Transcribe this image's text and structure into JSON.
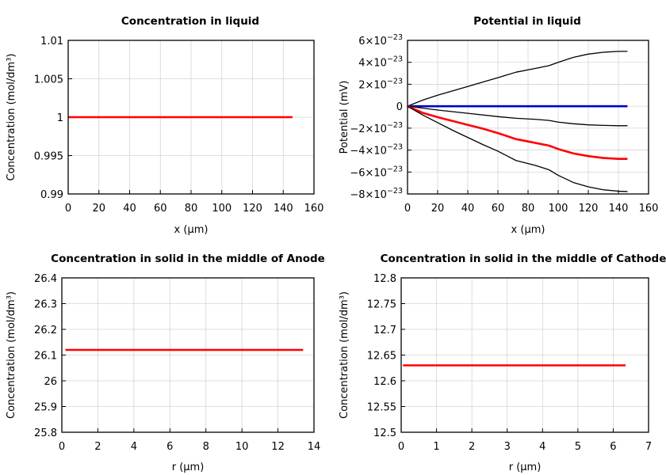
{
  "chart_data": [
    {
      "type": "line",
      "title": "Concentration in liquid",
      "xlabel": "x (µm)",
      "ylabel": "Concentration (mol/dm³)",
      "xlim": [
        0,
        160
      ],
      "ylim": [
        0.99,
        1.01
      ],
      "xticks": [
        "0",
        "20",
        "40",
        "60",
        "80",
        "100",
        "120",
        "140",
        "160"
      ],
      "yticks": [
        "0.99",
        "0.995",
        "1",
        "1.005",
        "1.01"
      ],
      "grid": true,
      "series": [
        {
          "color": "#ff0000",
          "width": 2.6,
          "x": [
            0,
            146
          ],
          "y": [
            1,
            1
          ]
        }
      ]
    },
    {
      "type": "line",
      "title": "Potential in liquid",
      "xlabel": "x (µm)",
      "ylabel": "Potential (mV)",
      "xlim": [
        0,
        160
      ],
      "ylim": [
        -8e-23,
        6e-23
      ],
      "xticks": [
        "0",
        "20",
        "40",
        "60",
        "80",
        "100",
        "120",
        "140",
        "160"
      ],
      "yticks": [
        {
          "mant": "−8×10",
          "exp": "−23"
        },
        {
          "mant": "−6×10",
          "exp": "−23"
        },
        {
          "mant": "−4×10",
          "exp": "−23"
        },
        {
          "mant": "−2×10",
          "exp": "−23"
        },
        {
          "mant": "0",
          "exp": ""
        },
        {
          "mant": "2×10",
          "exp": "−23"
        },
        {
          "mant": "4×10",
          "exp": "−23"
        },
        {
          "mant": "6×10",
          "exp": "−23"
        }
      ],
      "grid": true,
      "series": [
        {
          "color": "#000000",
          "width": 1.3,
          "x": [
            0,
            10,
            20,
            30,
            40,
            50,
            60,
            72,
            85,
            94,
            100,
            110,
            120,
            130,
            140,
            146
          ],
          "y": [
            0,
            5.5e-24,
            1e-23,
            1.4e-23,
            1.8e-23,
            2.2e-23,
            2.6e-23,
            3.1e-23,
            3.45e-23,
            3.7e-23,
            4e-23,
            4.45e-23,
            4.75e-23,
            4.92e-23,
            5e-23,
            5e-23
          ]
        },
        {
          "color": "#0000cc",
          "width": 2.6,
          "x": [
            0,
            146
          ],
          "y": [
            0,
            0
          ]
        },
        {
          "color": "#000000",
          "width": 1.3,
          "x": [
            0,
            20,
            40,
            60,
            72,
            85,
            94,
            100,
            110,
            120,
            130,
            140,
            146
          ],
          "y": [
            0,
            -3.5e-24,
            -6.5e-24,
            -9.5e-24,
            -1.1e-23,
            -1.2e-23,
            -1.3e-23,
            -1.45e-23,
            -1.6e-23,
            -1.7e-23,
            -1.75e-23,
            -1.78e-23,
            -1.78e-23
          ]
        },
        {
          "color": "#ff0000",
          "width": 2.6,
          "x": [
            0,
            10,
            20,
            30,
            40,
            50,
            60,
            72,
            85,
            94,
            100,
            110,
            120,
            130,
            140,
            146
          ],
          "y": [
            0,
            -6e-24,
            -1e-23,
            -1.35e-23,
            -1.7e-23,
            -2.05e-23,
            -2.45e-23,
            -3e-23,
            -3.35e-23,
            -3.6e-23,
            -3.9e-23,
            -4.3e-23,
            -4.55e-23,
            -4.72e-23,
            -4.8e-23,
            -4.8e-23
          ]
        },
        {
          "color": "#000000",
          "width": 1.3,
          "x": [
            0,
            10,
            20,
            30,
            40,
            50,
            60,
            72,
            85,
            94,
            100,
            110,
            120,
            130,
            140,
            146
          ],
          "y": [
            0,
            -8e-24,
            -1.5e-23,
            -2.2e-23,
            -2.85e-23,
            -3.5e-23,
            -4.1e-23,
            -4.95e-23,
            -5.4e-23,
            -5.8e-23,
            -6.3e-23,
            -6.95e-23,
            -7.35e-23,
            -7.62e-23,
            -7.75e-23,
            -7.78e-23
          ]
        }
      ]
    },
    {
      "type": "line",
      "title": "Concentration in solid in the middle of Anode",
      "xlabel": "r (µm)",
      "ylabel": "Concentration (mol/dm³)",
      "xlim": [
        0,
        14
      ],
      "ylim": [
        25.8,
        26.4
      ],
      "xticks": [
        "0",
        "2",
        "4",
        "6",
        "8",
        "10",
        "12",
        "14"
      ],
      "yticks": [
        "25.8",
        "25.9",
        "26",
        "26.1",
        "26.2",
        "26.3",
        "26.4"
      ],
      "grid": true,
      "series": [
        {
          "color": "#ff0000",
          "width": 2.6,
          "x": [
            0.2,
            13.4
          ],
          "y": [
            26.12,
            26.12
          ]
        }
      ]
    },
    {
      "type": "line",
      "title": "Concentration in solid in the middle of Cathode",
      "xlabel": "r (µm)",
      "ylabel": "Concentration (mol/dm³)",
      "xlim": [
        0,
        7
      ],
      "ylim": [
        12.5,
        12.8
      ],
      "xticks": [
        "0",
        "1",
        "2",
        "3",
        "4",
        "5",
        "6",
        "7"
      ],
      "yticks": [
        "12.5",
        "12.55",
        "12.6",
        "12.65",
        "12.7",
        "12.75",
        "12.8"
      ],
      "grid": true,
      "series": [
        {
          "color": "#ff0000",
          "width": 2.6,
          "x": [
            0.05,
            6.35
          ],
          "y": [
            12.63,
            12.63
          ]
        }
      ]
    }
  ]
}
